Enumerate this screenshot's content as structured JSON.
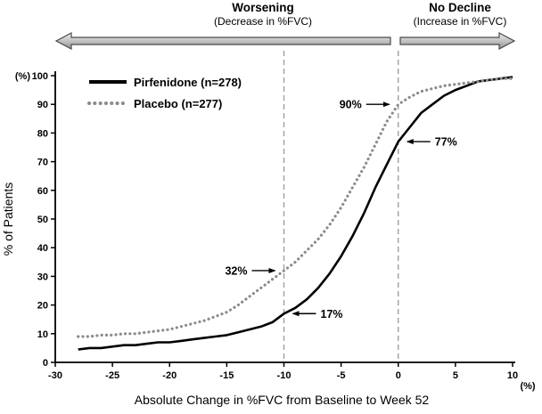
{
  "chart_data": {
    "type": "line",
    "title": "",
    "xlabel": "Absolute Change in %FVC from Baseline to Week 52",
    "ylabel": "% of Patients",
    "x_unit_label": "(%)",
    "y_unit_label": "(%)",
    "xlim": [
      -30,
      10
    ],
    "ylim": [
      0,
      100
    ],
    "x_ticks": [
      -30,
      -25,
      -20,
      -15,
      -10,
      -5,
      0,
      5,
      10
    ],
    "y_ticks": [
      0,
      10,
      20,
      30,
      40,
      50,
      60,
      70,
      80,
      90,
      100
    ],
    "grid": false,
    "legend_position": "top-left",
    "reference_lines_x": [
      -10,
      0
    ],
    "series": [
      {
        "name": "Pirfenidone (n=278)",
        "style": "solid",
        "color": "#000000",
        "x": [
          -28,
          -27,
          -26,
          -25,
          -24,
          -23,
          -22,
          -21,
          -20,
          -19,
          -18,
          -17,
          -16,
          -15,
          -14,
          -13,
          -12,
          -11,
          -10,
          -9,
          -8,
          -7,
          -6,
          -5,
          -4,
          -3,
          -2,
          -1,
          0,
          1,
          2,
          3,
          4,
          5,
          6,
          7,
          8,
          9,
          10
        ],
        "y": [
          4.5,
          5,
          5,
          5.5,
          6,
          6,
          6.5,
          7,
          7,
          7.5,
          8,
          8.5,
          9,
          9.5,
          10.5,
          11.5,
          12.5,
          14,
          17,
          19,
          22,
          26,
          31,
          37,
          44,
          52,
          61,
          69,
          77,
          82,
          87,
          90,
          93,
          95,
          96.5,
          98,
          98.5,
          99,
          99.5
        ]
      },
      {
        "name": "Placebo (n=277)",
        "style": "dotted",
        "color": "#8c8c8c",
        "x": [
          -28,
          -27,
          -26,
          -25,
          -24,
          -23,
          -22,
          -21,
          -20,
          -19,
          -18,
          -17,
          -16,
          -15,
          -14,
          -13,
          -12,
          -11,
          -10,
          -9,
          -8,
          -7,
          -6,
          -5,
          -4,
          -3,
          -2,
          -1,
          0,
          1,
          2,
          3,
          4,
          5,
          6,
          7,
          8,
          9,
          10
        ],
        "y": [
          9,
          9,
          9.5,
          9.5,
          10,
          10,
          10.5,
          11,
          11.5,
          12.5,
          13.5,
          14.5,
          16,
          17.5,
          20,
          23,
          26,
          29,
          32,
          35,
          39,
          43,
          48,
          54,
          61,
          68,
          76,
          84,
          90,
          92.5,
          94.5,
          95.5,
          96.5,
          97,
          97.5,
          98,
          98.5,
          99,
          99
        ]
      }
    ],
    "annotations": [
      {
        "label": "90%",
        "x": 0,
        "y": 90,
        "series": "Placebo (n=277)",
        "text_side": "left"
      },
      {
        "label": "77%",
        "x": 0,
        "y": 77,
        "series": "Pirfenidone (n=278)",
        "text_side": "right"
      },
      {
        "label": "32%",
        "x": -10,
        "y": 32,
        "series": "Placebo (n=277)",
        "text_side": "left"
      },
      {
        "label": "17%",
        "x": -10,
        "y": 17,
        "series": "Pirfenidone (n=278)",
        "text_side": "right"
      }
    ],
    "region_labels": {
      "worsening": {
        "title": "Worsening",
        "subtitle": "(Decrease in %FVC)",
        "direction": "left"
      },
      "no_decline": {
        "title": "No Decline",
        "subtitle": "(Increase in %FVC)",
        "direction": "right"
      }
    }
  }
}
